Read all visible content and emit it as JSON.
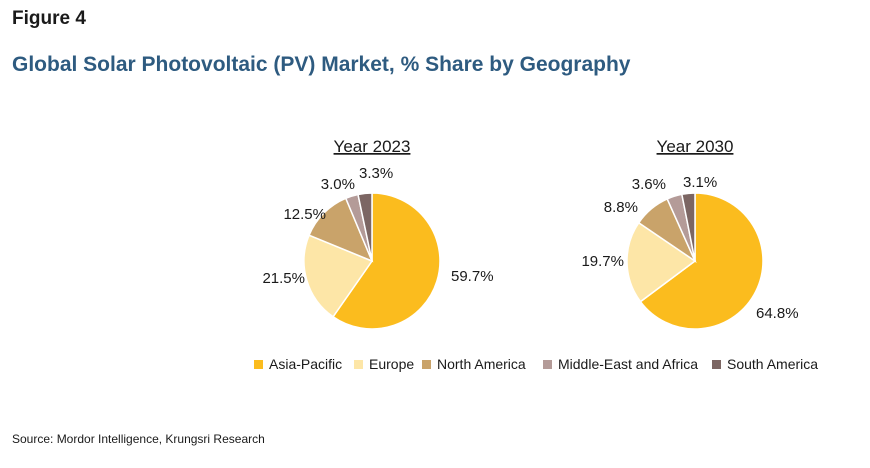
{
  "figure_label": "Figure 4",
  "title": "Global Solar Photovoltaic (PV) Market, % Share by Geography",
  "source": "Source: Mordor Intelligence, Krungsri Research",
  "chart_data": [
    {
      "type": "pie",
      "title": "Year 2023",
      "categories": [
        "Asia-Pacific",
        "Europe",
        "North America",
        "Middle-East and Africa",
        "South America"
      ],
      "values": [
        59.7,
        21.5,
        12.5,
        3.0,
        3.3
      ],
      "labels": [
        "59.7%",
        "21.5%",
        "12.5%",
        "3.0%",
        "3.3%"
      ]
    },
    {
      "type": "pie",
      "title": "Year 2030",
      "categories": [
        "Asia-Pacific",
        "Europe",
        "North America",
        "Middle-East and Africa",
        "South America"
      ],
      "values": [
        64.8,
        19.7,
        8.8,
        3.6,
        3.1
      ],
      "labels": [
        "64.8%",
        "19.7%",
        "8.8%",
        "3.6%",
        "3.1%"
      ]
    }
  ],
  "legend": [
    {
      "label": "Asia-Pacific",
      "color": "#fbbc1e"
    },
    {
      "label": "Europe",
      "color": "#fde6a7"
    },
    {
      "label": "North America",
      "color": "#c9a36a"
    },
    {
      "label": "Middle-East and Africa",
      "color": "#b49b98"
    },
    {
      "label": "South America",
      "color": "#7c6663"
    }
  ]
}
